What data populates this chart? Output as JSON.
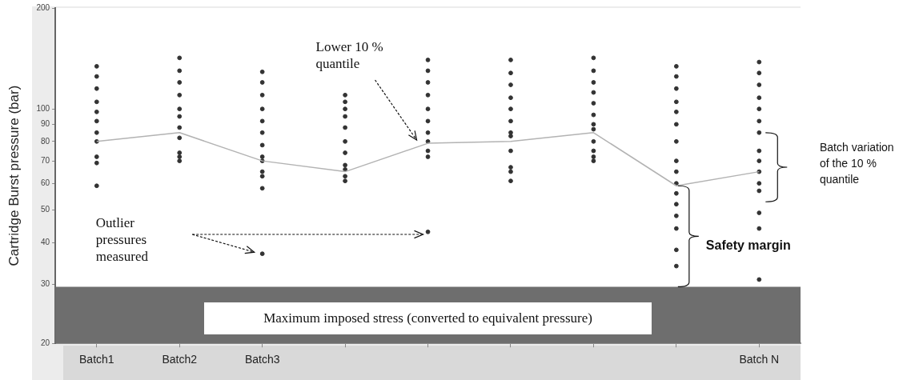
{
  "chart_data": {
    "type": "line",
    "ylabel": "Cartridge Burst pressure (bar)",
    "categories": [
      "Batch1",
      "Batch2",
      "Batch3",
      null,
      null,
      null,
      null,
      null,
      "Batch N"
    ],
    "log": "y",
    "ylim": [
      20,
      200
    ],
    "yticks": [
      20,
      30,
      40,
      50,
      60,
      70,
      80,
      90,
      100,
      200
    ],
    "grid": false,
    "legend": false,
    "marker": "none",
    "series": [
      {
        "color": "#b3b3b3",
        "values": [
          80,
          85,
          70,
          65,
          79,
          80,
          85,
          59,
          65
        ]
      },
      {
        "type": "scatter",
        "marker": "circle",
        "color": "#333333",
        "values": [
          134,
          142,
          129,
          110,
          140,
          140,
          142,
          134,
          138
        ]
      },
      {
        "type": "scatter",
        "marker": "circle",
        "color": "#333333",
        "values": [
          125,
          130,
          120,
          105,
          130,
          128,
          130,
          125,
          128
        ]
      },
      {
        "type": "scatter",
        "marker": "circle",
        "color": "#333333",
        "values": [
          115,
          120,
          110,
          100,
          120,
          118,
          120,
          115,
          118
        ]
      },
      {
        "type": "scatter",
        "marker": "circle",
        "color": "#333333",
        "values": [
          105,
          110,
          100,
          95,
          110,
          108,
          112,
          105,
          108
        ]
      },
      {
        "type": "scatter",
        "marker": "circle",
        "color": "#333333",
        "values": [
          98,
          100,
          92,
          88,
          100,
          100,
          104,
          98,
          100
        ]
      },
      {
        "type": "scatter",
        "marker": "circle",
        "color": "#333333",
        "values": [
          92,
          95,
          85,
          80,
          92,
          92,
          96,
          90,
          92
        ]
      },
      {
        "type": "scatter",
        "marker": "circle",
        "color": "#333333",
        "values": [
          85,
          88,
          78,
          74,
          85,
          85,
          90,
          80,
          85
        ]
      },
      {
        "type": "scatter",
        "marker": "circle",
        "color": "#333333",
        "values": [
          80,
          82,
          72,
          68,
          80,
          83,
          87,
          70,
          75
        ]
      },
      {
        "type": "scatter",
        "marker": "circle",
        "color": "#333333",
        "values": [
          72,
          74,
          70,
          66,
          75,
          75,
          80,
          65,
          70
        ]
      },
      {
        "type": "scatter",
        "marker": "circle",
        "color": "#333333",
        "values": [
          69,
          72,
          65,
          63,
          72,
          67,
          75,
          60,
          65
        ]
      },
      {
        "type": "scatter",
        "marker": "circle",
        "color": "#333333",
        "values": [
          59,
          70,
          63,
          61,
          null,
          65,
          72,
          56,
          60
        ]
      },
      {
        "type": "scatter",
        "marker": "circle",
        "color": "#333333",
        "values": [
          null,
          null,
          58,
          null,
          null,
          61,
          70,
          52,
          57
        ]
      },
      {
        "type": "scatter",
        "marker": "circle",
        "color": "#333333",
        "values": [
          null,
          null,
          37,
          null,
          43,
          null,
          null,
          48,
          49
        ]
      },
      {
        "type": "scatter",
        "marker": "circle",
        "color": "#333333",
        "values": [
          null,
          null,
          null,
          null,
          null,
          null,
          null,
          44,
          44
        ]
      },
      {
        "type": "scatter",
        "marker": "circle",
        "color": "#333333",
        "values": [
          null,
          null,
          null,
          null,
          null,
          null,
          null,
          38,
          31
        ]
      },
      {
        "type": "scatter",
        "marker": "circle",
        "color": "#333333",
        "values": [
          null,
          null,
          null,
          null,
          null,
          null,
          null,
          34,
          null
        ]
      }
    ],
    "bands": [
      {
        "axis": "y",
        "from": 20,
        "to": 29.5,
        "label": "Maximum imposed stress (converted to equivalent pressure)",
        "color": "#6e6e6e"
      }
    ],
    "annotations": [
      "Lower 10 % quantile",
      "Outlier pressures measured",
      "Batch variation of the 10 % quantile",
      "Safety margin"
    ]
  }
}
